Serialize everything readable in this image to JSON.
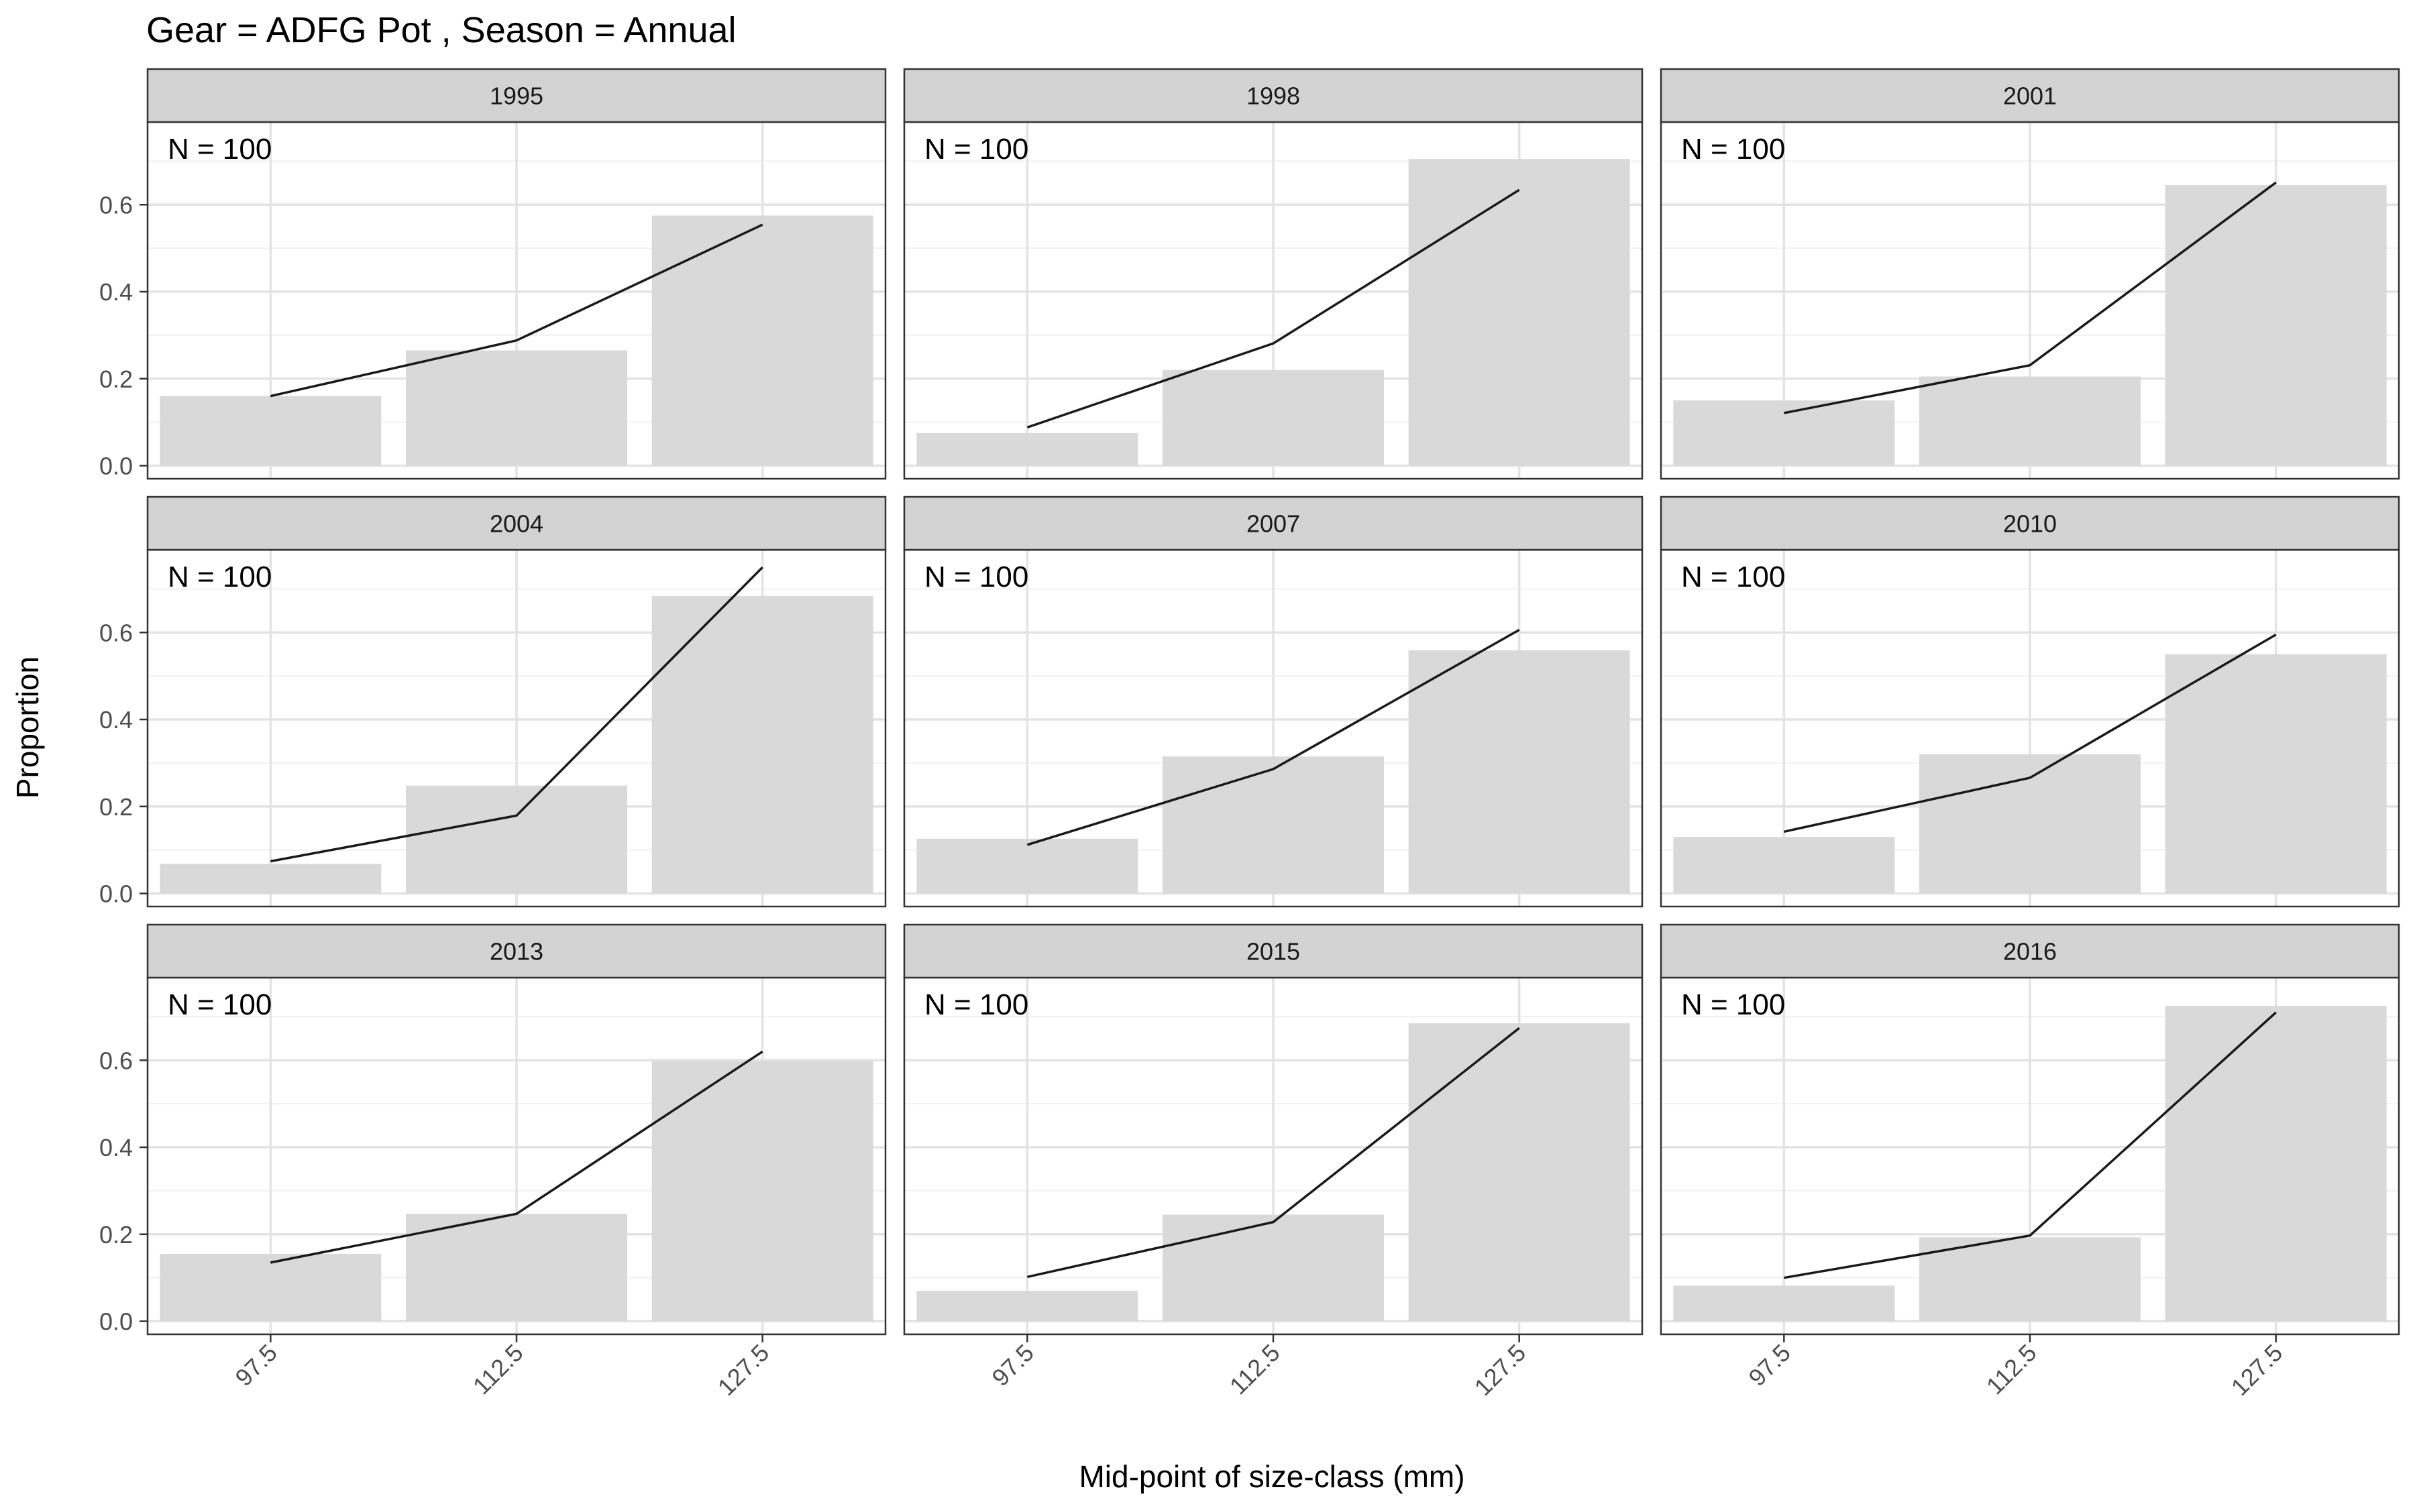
{
  "chart_data": {
    "type": "bar",
    "title": "Gear = ADFG Pot , Season = Annual",
    "xlabel": "Mid-point of size-class (mm)",
    "ylabel": "Proportion",
    "categories": [
      "97.5",
      "112.5",
      "127.5"
    ],
    "y_ticks": [
      "0.0",
      "0.2",
      "0.4",
      "0.6"
    ],
    "ylim": [
      -0.03,
      0.79
    ],
    "grid": true,
    "bar_color": "#d9d9d9",
    "line_color": "#1a1a1a",
    "strip_color": "#d3d3d3",
    "panels": [
      {
        "label": "1995",
        "annotation": "N = 100",
        "observed": [
          0.16,
          0.265,
          0.575
        ],
        "predicted": [
          0.16,
          0.288,
          0.554
        ]
      },
      {
        "label": "1998",
        "annotation": "N = 100",
        "observed": [
          0.075,
          0.22,
          0.705
        ],
        "predicted": [
          0.088,
          0.281,
          0.634
        ]
      },
      {
        "label": "2001",
        "annotation": "N = 100",
        "observed": [
          0.15,
          0.205,
          0.645
        ],
        "predicted": [
          0.121,
          0.231,
          0.651
        ]
      },
      {
        "label": "2004",
        "annotation": "N = 100",
        "observed": [
          0.068,
          0.248,
          0.684
        ],
        "predicted": [
          0.074,
          0.179,
          0.75
        ]
      },
      {
        "label": "2007",
        "annotation": "N = 100",
        "observed": [
          0.126,
          0.315,
          0.559
        ],
        "predicted": [
          0.112,
          0.286,
          0.606
        ]
      },
      {
        "label": "2010",
        "annotation": "N = 100",
        "observed": [
          0.13,
          0.32,
          0.55
        ],
        "predicted": [
          0.142,
          0.266,
          0.595
        ]
      },
      {
        "label": "2013",
        "annotation": "N = 100",
        "observed": [
          0.155,
          0.247,
          0.598
        ],
        "predicted": [
          0.135,
          0.247,
          0.62
        ]
      },
      {
        "label": "2015",
        "annotation": "N = 100",
        "observed": [
          0.07,
          0.245,
          0.685
        ],
        "predicted": [
          0.102,
          0.228,
          0.674
        ]
      },
      {
        "label": "2016",
        "annotation": "N = 100",
        "observed": [
          0.082,
          0.193,
          0.725
        ],
        "predicted": [
          0.1,
          0.197,
          0.71
        ]
      }
    ]
  }
}
